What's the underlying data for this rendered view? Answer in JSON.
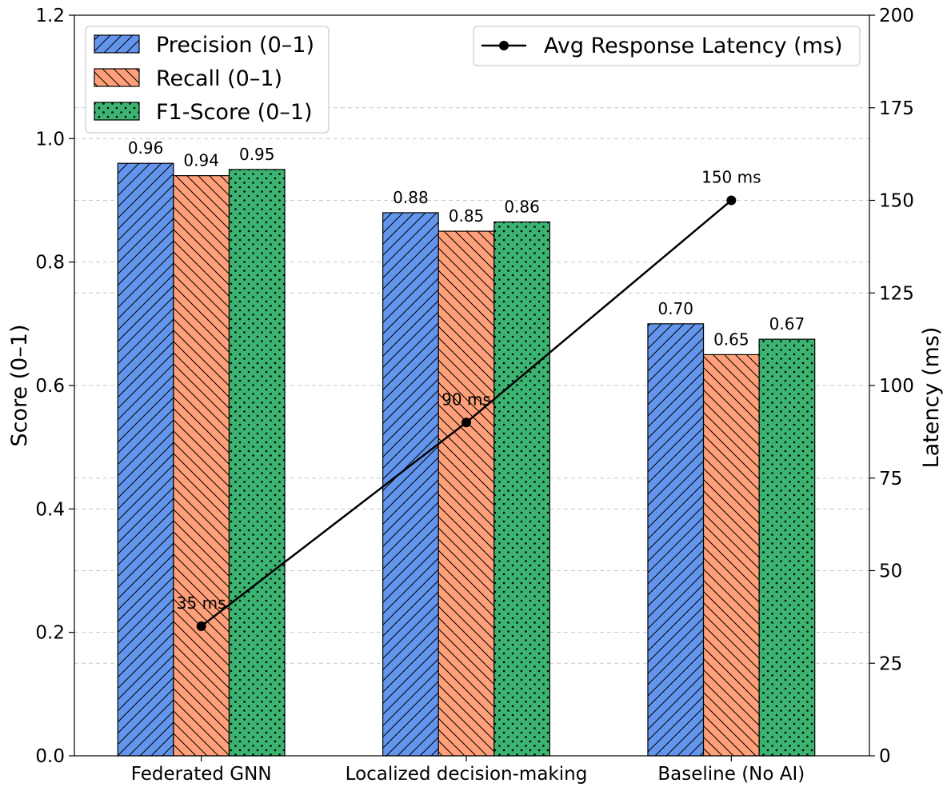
{
  "chart_data": {
    "type": "bar",
    "categories": [
      "Federated GNN",
      "Localized decision-making",
      "Baseline (No AI)"
    ],
    "series": [
      {
        "name": "Precision (0–1)",
        "values": [
          0.96,
          0.88,
          0.7
        ],
        "labels": [
          "0.96",
          "0.88",
          "0.70"
        ],
        "color": "#6495ED",
        "hatch": "forward-diagonal"
      },
      {
        "name": "Recall (0–1)",
        "values": [
          0.94,
          0.85,
          0.65
        ],
        "labels": [
          "0.94",
          "0.85",
          "0.65"
        ],
        "color": "#FFA07A",
        "hatch": "back-diagonal"
      },
      {
        "name": "F1-Score (0–1)",
        "values": [
          0.95,
          0.865,
          0.675
        ],
        "labels": [
          "0.95",
          "0.86",
          "0.67"
        ],
        "color": "#3CB371",
        "hatch": "dots"
      }
    ],
    "line_series": {
      "name": "Avg Response Latency (ms)",
      "axis": "right",
      "values": [
        35,
        90,
        150
      ],
      "labels": [
        "35 ms",
        "90 ms",
        "150 ms"
      ],
      "color": "#000000"
    },
    "ylabel": "Score (0–1)",
    "y2label": "Latency (ms)",
    "ylim": [
      0,
      1.2
    ],
    "y2lim": [
      0,
      200
    ],
    "yticks": [
      "0.0",
      "0.2",
      "0.4",
      "0.6",
      "0.8",
      "1.0",
      "1.2"
    ],
    "y2ticks": [
      "0",
      "25",
      "50",
      "75",
      "100",
      "125",
      "150",
      "175",
      "200"
    ],
    "grid": "horizontal-dashed",
    "legend_bars_position": "top-left",
    "legend_line_position": "top-right"
  }
}
